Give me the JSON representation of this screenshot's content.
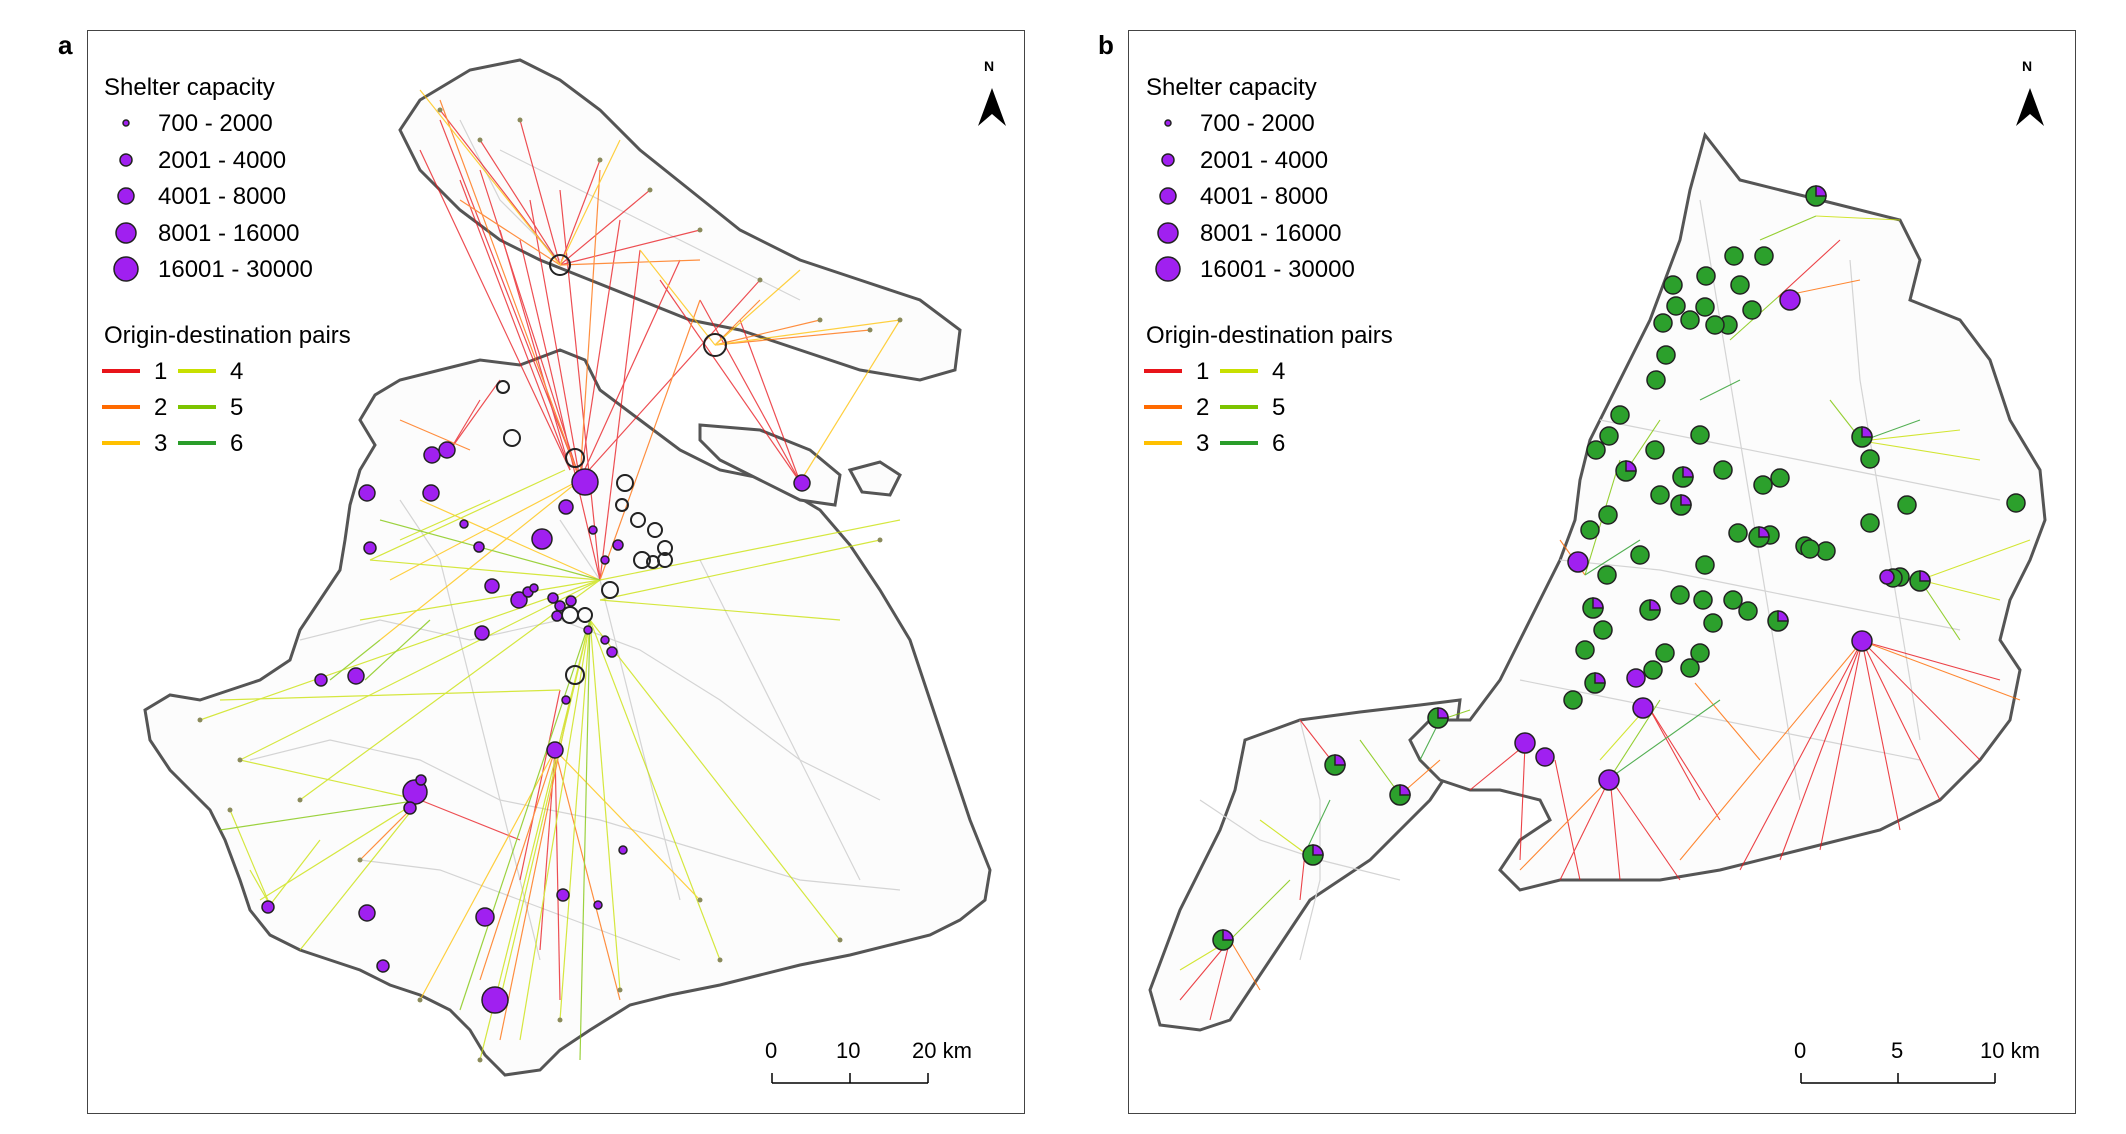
{
  "panels": [
    {
      "letter": "a",
      "north": "N",
      "shelter_title": "Shelter capacity",
      "shelter_classes": [
        "700 - 2000",
        "2001 - 4000",
        "4001 - 8000",
        "8001 - 16000",
        "16001 - 30000"
      ],
      "od_title": "Origin-destination pairs",
      "od_labels": [
        "1",
        "2",
        "3",
        "4",
        "5",
        "6"
      ],
      "scale_labels": [
        "0",
        "10",
        "20 km"
      ]
    },
    {
      "letter": "b",
      "north": "N",
      "shelter_title": "Shelter capacity",
      "shelter_classes": [
        "700 - 2000",
        "2001 - 4000",
        "4001 - 8000",
        "8001 - 16000",
        "16001 - 30000"
      ],
      "od_title": "Origin-destination pairs",
      "od_labels": [
        "1",
        "2",
        "3",
        "4",
        "5",
        "6"
      ],
      "scale_labels": [
        "0",
        "5",
        "10 km"
      ]
    }
  ],
  "colors": {
    "shelter": "#a020f0",
    "shelter_green": "#2ca02c",
    "od": [
      "#e8141a",
      "#ff6a00",
      "#ffc000",
      "#c8e000",
      "#7cc400",
      "#2a9d2a"
    ],
    "boundary": "#555555"
  }
}
